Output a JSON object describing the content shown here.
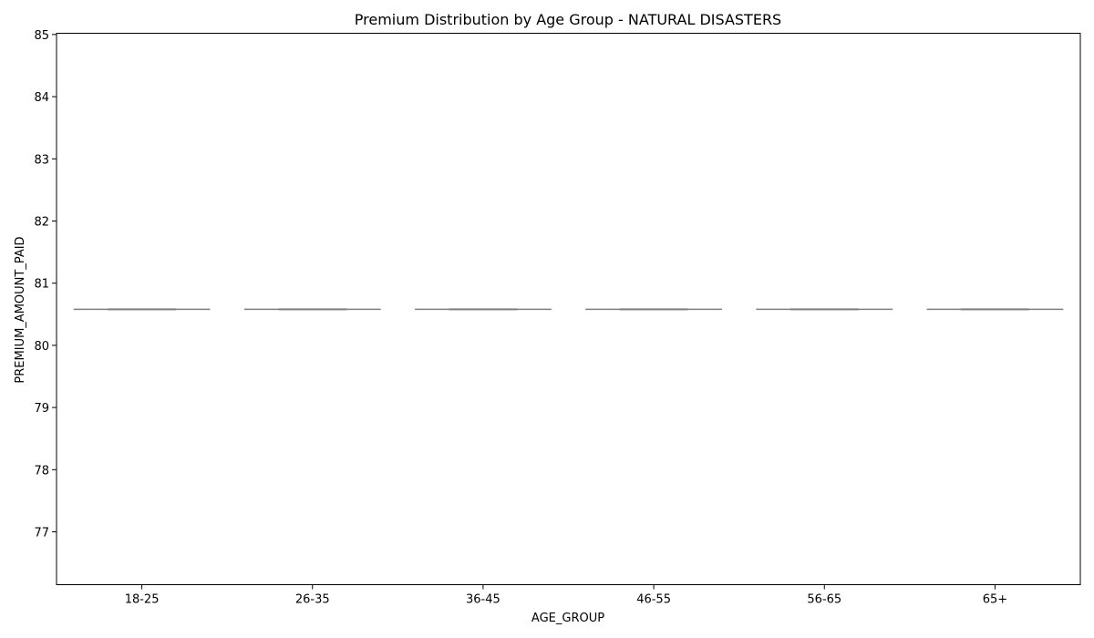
{
  "chart_data": {
    "type": "box",
    "title": "Premium Distribution by Age Group - NATURAL DISASTERS",
    "xlabel": "AGE_GROUP",
    "ylabel": "PREMIUM_AMOUNT_PAID",
    "categories": [
      "18-25",
      "26-35",
      "36-45",
      "46-55",
      "56-65",
      "65+"
    ],
    "values": [
      80.58,
      80.58,
      80.58,
      80.58,
      80.58,
      80.58
    ],
    "ylim": [
      76.15,
      85.02
    ],
    "yticks": [
      77,
      78,
      79,
      80,
      81,
      82,
      83,
      84,
      85
    ],
    "grid": false,
    "colors": {
      "box_line": "#7f7f7f",
      "axis": "#000000"
    }
  }
}
